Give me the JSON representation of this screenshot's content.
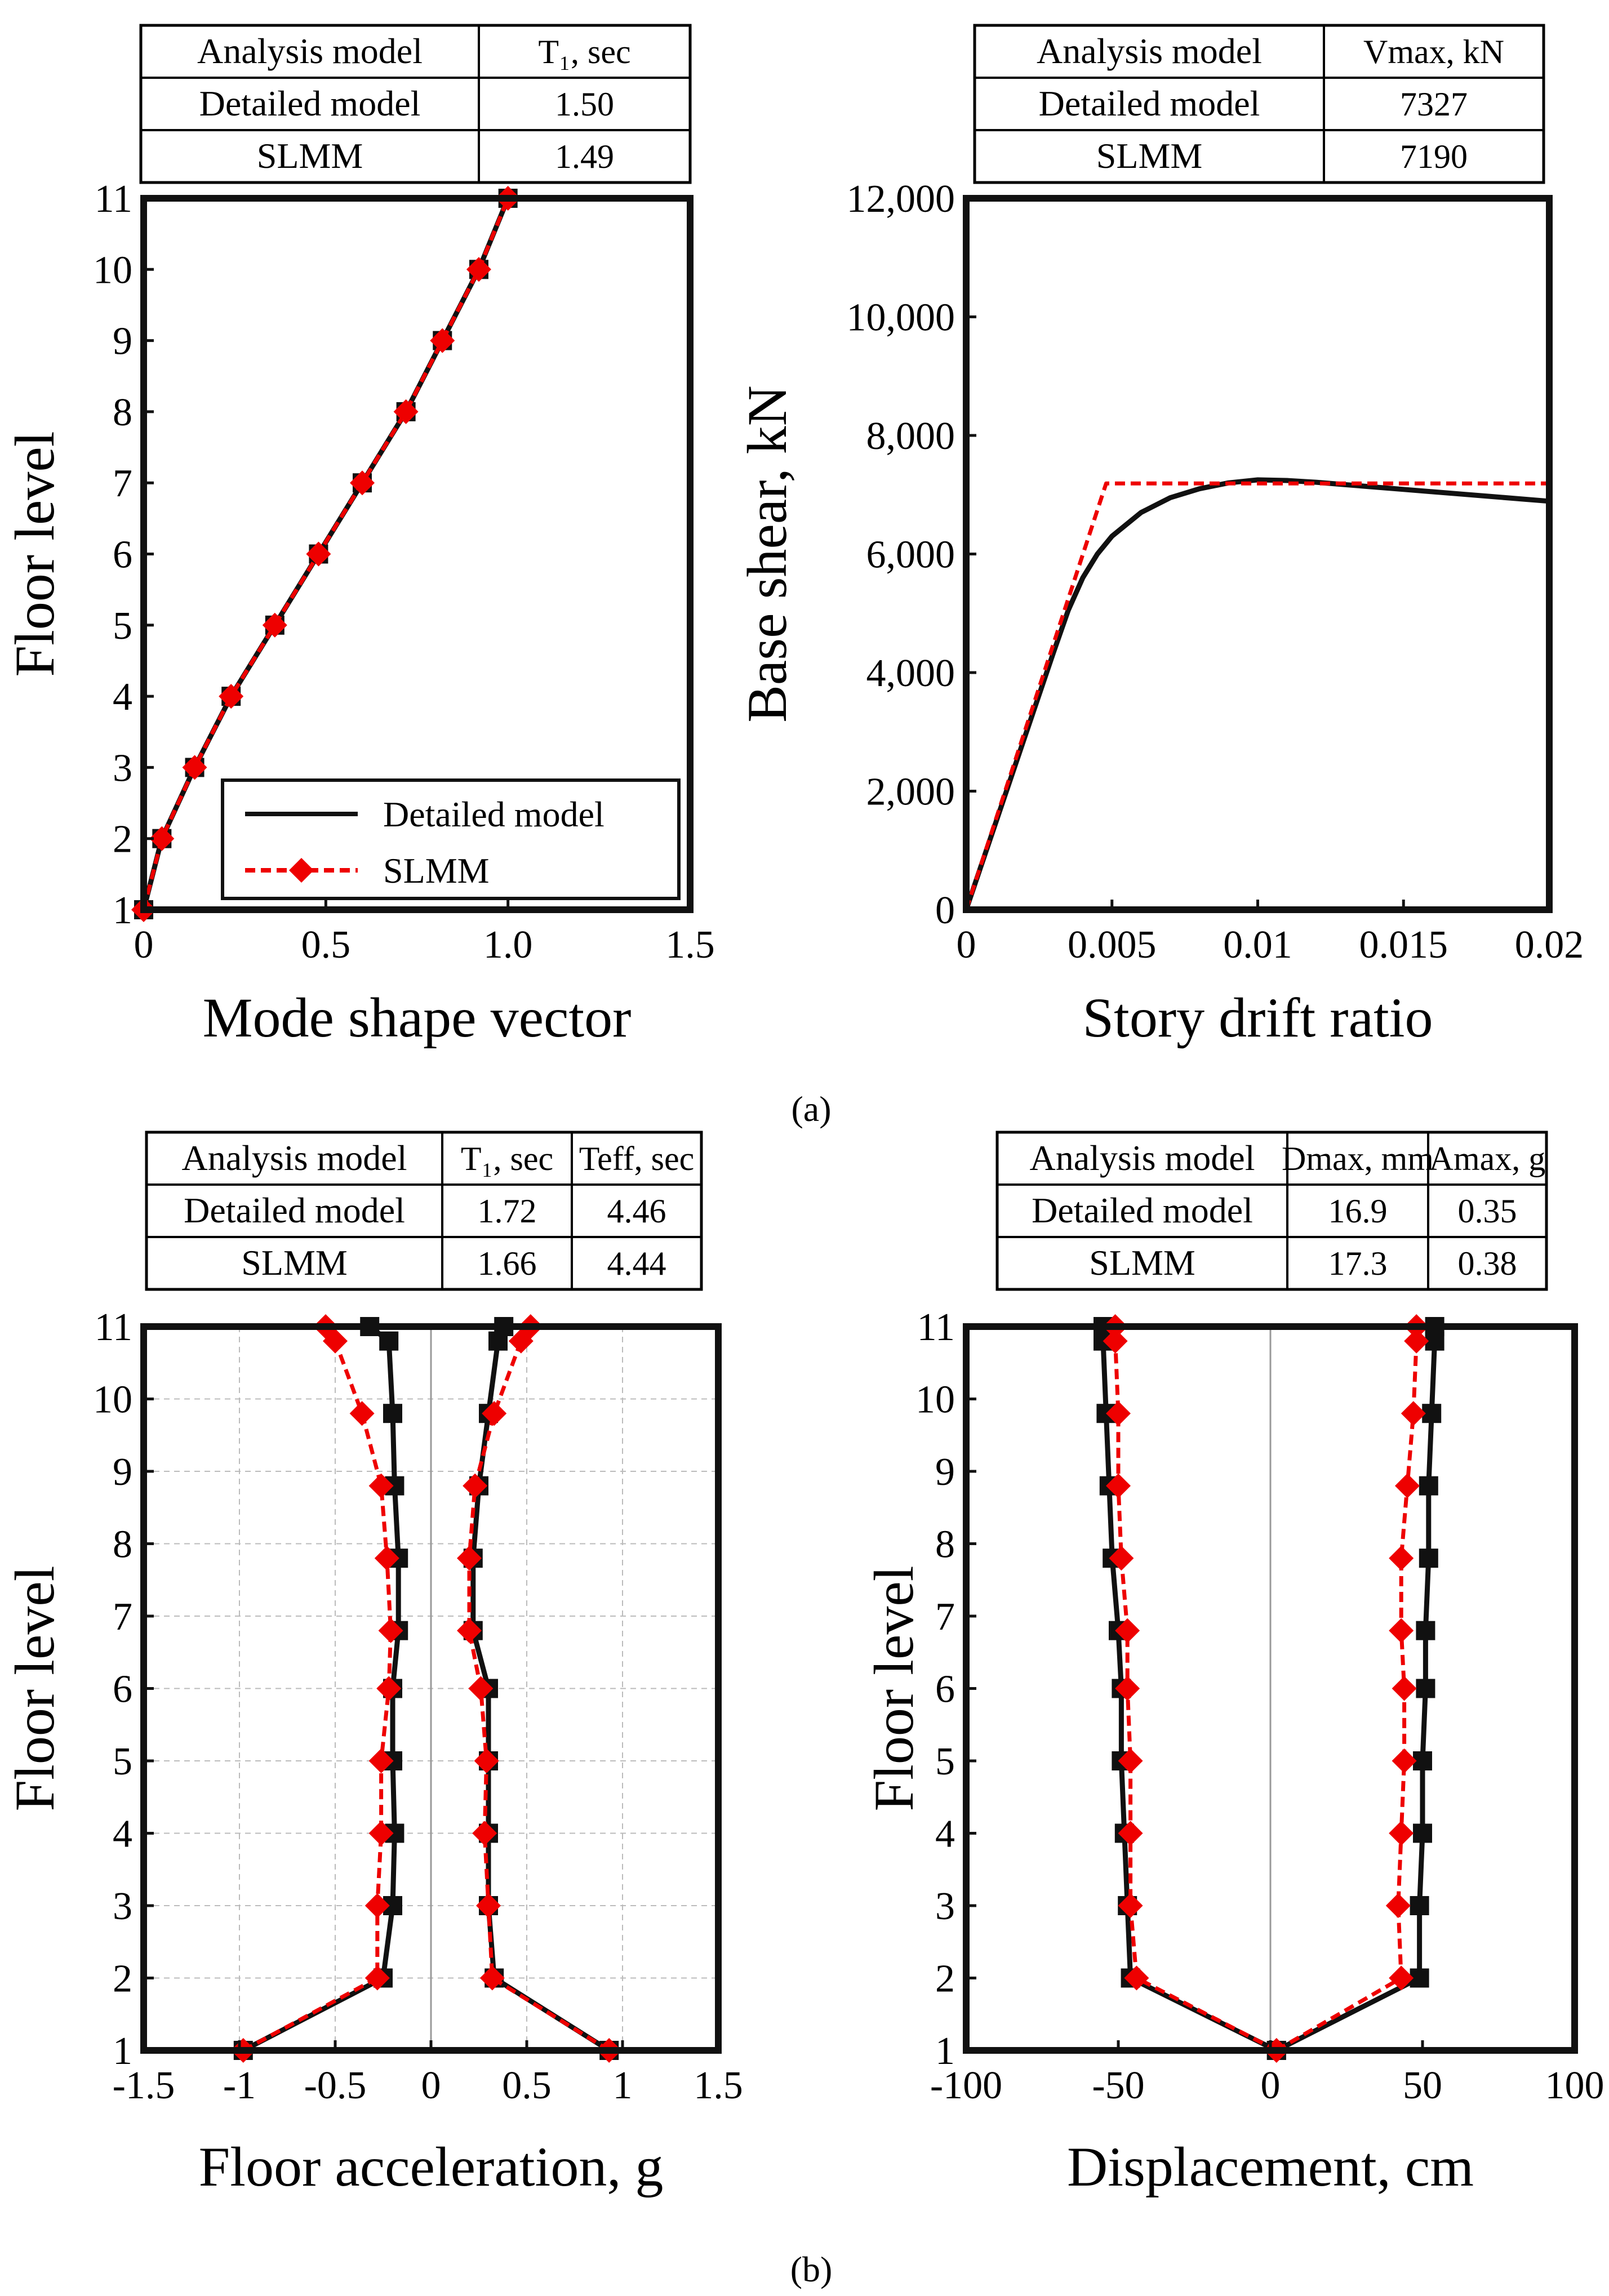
{
  "colors": {
    "detailed": "#111111",
    "slmm": "#ee0000",
    "axis": "#111111",
    "grid": "#bbbbbb",
    "zero_line": "#999999"
  },
  "captions": {
    "a": "(a)",
    "b": "(b)"
  },
  "chart_data": [
    {
      "id": "mode_shape",
      "type": "line",
      "xlabel": "Mode shape vector",
      "ylabel": "Floor level",
      "xlim": [
        0,
        1.5
      ],
      "ylim": [
        1,
        11
      ],
      "xticks": [
        "0",
        "0.5",
        "1.0",
        "1.5"
      ],
      "yticks": [
        "1",
        "2",
        "3",
        "4",
        "5",
        "6",
        "7",
        "8",
        "9",
        "10",
        "11"
      ],
      "grid": false,
      "legend_position": "bottom-right",
      "legend": [
        "Detailed model",
        "SLMM"
      ],
      "series": [
        {
          "name": "Detailed model",
          "marker": "square",
          "x": [
            0.0,
            0.05,
            0.14,
            0.24,
            0.36,
            0.48,
            0.6,
            0.72,
            0.82,
            0.92,
            1.0
          ],
          "y": [
            1,
            2,
            3,
            4,
            5,
            6,
            7,
            8,
            9,
            10,
            11
          ]
        },
        {
          "name": "SLMM",
          "marker": "diamond",
          "x": [
            0.0,
            0.05,
            0.14,
            0.24,
            0.36,
            0.48,
            0.6,
            0.72,
            0.82,
            0.92,
            1.0
          ],
          "y": [
            1,
            2,
            3,
            4,
            5,
            6,
            7,
            8,
            9,
            10,
            11
          ]
        }
      ],
      "table": {
        "columns": [
          "Analysis model",
          "T₁, sec"
        ],
        "rows": [
          [
            "Detailed model",
            "1.50"
          ],
          [
            "SLMM",
            "1.49"
          ]
        ]
      }
    },
    {
      "id": "pushover",
      "type": "line",
      "xlabel": "Story drift ratio",
      "ylabel": "Base shear, kN",
      "xlim": [
        0,
        0.02
      ],
      "ylim": [
        0,
        12000
      ],
      "xticks": [
        "0",
        "0.005",
        "0.01",
        "0.015",
        "0.02"
      ],
      "yticks": [
        "0",
        "2,000",
        "4,000",
        "6,000",
        "8,000",
        "10,000",
        "12,000"
      ],
      "grid": false,
      "series": [
        {
          "name": "Detailed model",
          "x": [
            0,
            0.001,
            0.002,
            0.003,
            0.0035,
            0.004,
            0.0045,
            0.005,
            0.006,
            0.007,
            0.008,
            0.009,
            0.01,
            0.011,
            0.012,
            0.013,
            0.014,
            0.015,
            0.016,
            0.017,
            0.018,
            0.019,
            0.02
          ],
          "y": [
            0,
            1450,
            2900,
            4350,
            5050,
            5600,
            6000,
            6300,
            6700,
            6950,
            7100,
            7200,
            7250,
            7240,
            7210,
            7170,
            7130,
            7090,
            7050,
            7010,
            6970,
            6930,
            6890
          ]
        },
        {
          "name": "SLMM",
          "x": [
            0,
            0.0048,
            0.02
          ],
          "y": [
            0,
            7190,
            7190
          ]
        }
      ],
      "table": {
        "columns": [
          "Analysis model",
          "Vmax, kN"
        ],
        "rows": [
          [
            "Detailed model",
            "7327"
          ],
          [
            "SLMM",
            "7190"
          ]
        ]
      }
    },
    {
      "id": "floor_acceleration",
      "type": "line",
      "xlabel": "Floor acceleration, g",
      "ylabel": "Floor level",
      "xlim": [
        -1.5,
        1.5
      ],
      "ylim": [
        1,
        11
      ],
      "xticks": [
        "-1.5",
        "-1",
        "-0.5",
        "0",
        "0.5",
        "1",
        "1.5"
      ],
      "yticks": [
        "1",
        "2",
        "3",
        "4",
        "5",
        "6",
        "7",
        "8",
        "9",
        "10",
        "11"
      ],
      "grid": true,
      "series": [
        {
          "name": "Detailed model (min)",
          "marker": "square",
          "x": [
            -0.98,
            -0.25,
            -0.2,
            -0.19,
            -0.2,
            -0.2,
            -0.17,
            -0.17,
            -0.19,
            -0.2,
            -0.22,
            -0.32
          ],
          "y": [
            1,
            2,
            3,
            4,
            5,
            6,
            6.8,
            7.8,
            8.8,
            9.8,
            10.8,
            11
          ]
        },
        {
          "name": "Detailed model (max)",
          "marker": "square",
          "x": [
            0.93,
            0.33,
            0.3,
            0.3,
            0.3,
            0.3,
            0.22,
            0.22,
            0.25,
            0.3,
            0.35,
            0.38
          ],
          "y": [
            1,
            2,
            3,
            4,
            5,
            6,
            6.8,
            7.8,
            8.8,
            9.8,
            10.8,
            11
          ]
        },
        {
          "name": "SLMM (min)",
          "marker": "diamond",
          "x": [
            -0.98,
            -0.28,
            -0.28,
            -0.26,
            -0.26,
            -0.22,
            -0.21,
            -0.23,
            -0.26,
            -0.36,
            -0.5,
            -0.55
          ],
          "y": [
            1,
            2,
            3,
            4,
            5,
            6,
            6.8,
            7.8,
            8.8,
            9.8,
            10.8,
            11
          ]
        },
        {
          "name": "SLMM (max)",
          "marker": "diamond",
          "x": [
            0.93,
            0.32,
            0.3,
            0.28,
            0.29,
            0.26,
            0.2,
            0.2,
            0.23,
            0.33,
            0.47,
            0.52
          ],
          "y": [
            1,
            2,
            3,
            4,
            5,
            6,
            6.8,
            7.8,
            8.8,
            9.8,
            10.8,
            11
          ]
        }
      ],
      "table": {
        "columns": [
          "Analysis model",
          "T₁, sec",
          "Teff, sec"
        ],
        "rows": [
          [
            "Detailed model",
            "1.72",
            "4.46"
          ],
          [
            "SLMM",
            "1.66",
            "4.44"
          ]
        ]
      }
    },
    {
      "id": "displacement",
      "type": "line",
      "xlabel": "Displacement, cm",
      "ylabel": "Floor level",
      "xlim": [
        -100,
        100
      ],
      "ylim": [
        1,
        11
      ],
      "xticks": [
        "-100",
        "-50",
        "0",
        "50",
        "100"
      ],
      "yticks": [
        "1",
        "2",
        "3",
        "4",
        "5",
        "6",
        "7",
        "8",
        "9",
        "10",
        "11"
      ],
      "grid": false,
      "series": [
        {
          "name": "Detailed model (min)",
          "marker": "square",
          "x": [
            2,
            -46,
            -47,
            -48,
            -49,
            -49,
            -50,
            -52,
            -53,
            -54,
            -55,
            -55
          ],
          "y": [
            1,
            2,
            3,
            4,
            5,
            6,
            6.8,
            7.8,
            8.8,
            9.8,
            10.8,
            11
          ]
        },
        {
          "name": "Detailed model (max)",
          "marker": "square",
          "x": [
            2,
            49,
            49,
            50,
            50,
            51,
            51,
            52,
            52,
            53,
            54,
            54
          ],
          "y": [
            1,
            2,
            3,
            4,
            5,
            6,
            6.8,
            7.8,
            8.8,
            9.8,
            10.8,
            11
          ]
        },
        {
          "name": "SLMM (min)",
          "marker": "diamond",
          "x": [
            2,
            -44,
            -46,
            -46,
            -46,
            -47,
            -47,
            -49,
            -50,
            -50,
            -51,
            -51
          ],
          "y": [
            1,
            2,
            3,
            4,
            5,
            6,
            6.8,
            7.8,
            8.8,
            9.8,
            10.8,
            11
          ]
        },
        {
          "name": "SLMM (max)",
          "marker": "diamond",
          "x": [
            2,
            43,
            42,
            43,
            44,
            44,
            43,
            43,
            45,
            47,
            48,
            48
          ],
          "y": [
            1,
            2,
            3,
            4,
            5,
            6,
            6.8,
            7.8,
            8.8,
            9.8,
            10.8,
            11
          ]
        }
      ],
      "table": {
        "columns": [
          "Analysis model",
          "Dmax, mm",
          "Amax, g"
        ],
        "rows": [
          [
            "Detailed model",
            "16.9",
            "0.35"
          ],
          [
            "SLMM",
            "17.3",
            "0.38"
          ]
        ]
      }
    }
  ]
}
